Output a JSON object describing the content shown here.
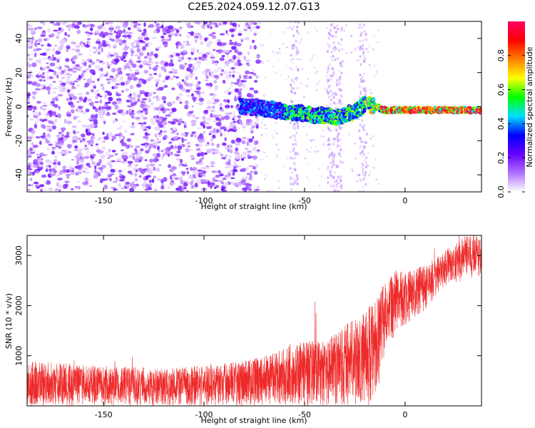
{
  "title": "C2E5.2024.059.12.07.G13",
  "chart_data": [
    {
      "type": "heatmap",
      "xlabel": "Height of straight line (km)",
      "ylabel": "Frequency (Hz)",
      "xlim": [
        -188,
        38
      ],
      "ylim": [
        -50,
        50
      ],
      "x_ticks": [
        -150,
        -100,
        -50,
        0
      ],
      "x_tick_labels": [
        "-150",
        "-100",
        "-50",
        "0"
      ],
      "y_ticks": [
        -40,
        -20,
        0,
        20,
        40
      ],
      "y_tick_labels": [
        "-40",
        "-20",
        "0",
        "20",
        "40"
      ],
      "colorbar": {
        "label": "Normalized spectral amplitude",
        "range": [
          0,
          1
        ],
        "ticks": [
          0.0,
          0.2,
          0.4,
          0.6,
          0.8
        ],
        "tick_labels": [
          "0.0",
          "0.2",
          "0.4",
          "0.6",
          "0.8"
        ],
        "colors": [
          "#ffffff",
          "#b070ff",
          "#6600ff",
          "#0000ff",
          "#00e0ff",
          "#00ff00",
          "#ffff00",
          "#ff8000",
          "#ff0000",
          "#ff0066"
        ]
      },
      "ridge": {
        "x": [
          -80,
          -70,
          -60,
          -50,
          -45,
          -40,
          -35,
          -30,
          -25,
          -20,
          -15,
          -10,
          0,
          10,
          20,
          38
        ],
        "y": [
          0,
          -1,
          -3,
          -4,
          -5,
          -5,
          -6,
          -5,
          -3,
          2,
          0,
          -2,
          -2,
          -2,
          -2,
          -2
        ]
      },
      "grid": false
    },
    {
      "type": "line",
      "xlabel": "Height of straight line (km)",
      "ylabel": "SNR (10 * v/v)",
      "xlim": [
        -188,
        38
      ],
      "ylim": [
        0,
        3400
      ],
      "x_ticks": [
        -150,
        -100,
        -50,
        0
      ],
      "x_tick_labels": [
        "-150",
        "-100",
        "-50",
        "0"
      ],
      "y_ticks": [
        1000,
        2000,
        3000
      ],
      "y_tick_labels": [
        "1000",
        "2000",
        "3000"
      ],
      "series_color": "#ee2a2a",
      "envelope": {
        "x": [
          -188,
          -150,
          -120,
          -100,
          -90,
          -80,
          -70,
          -60,
          -50,
          -40,
          -30,
          -20,
          -15,
          -10,
          -5,
          0,
          10,
          20,
          30,
          38
        ],
        "low": [
          0,
          0,
          0,
          0,
          0,
          0,
          0,
          0,
          0,
          0,
          0,
          0,
          50,
          1000,
          1400,
          1600,
          1900,
          2400,
          2500,
          2600
        ],
        "high": [
          900,
          800,
          750,
          800,
          850,
          900,
          1000,
          1150,
          1300,
          1300,
          1600,
          1900,
          2200,
          2500,
          2700,
          2700,
          2800,
          3100,
          3400,
          3400
        ]
      },
      "grid": false
    }
  ]
}
